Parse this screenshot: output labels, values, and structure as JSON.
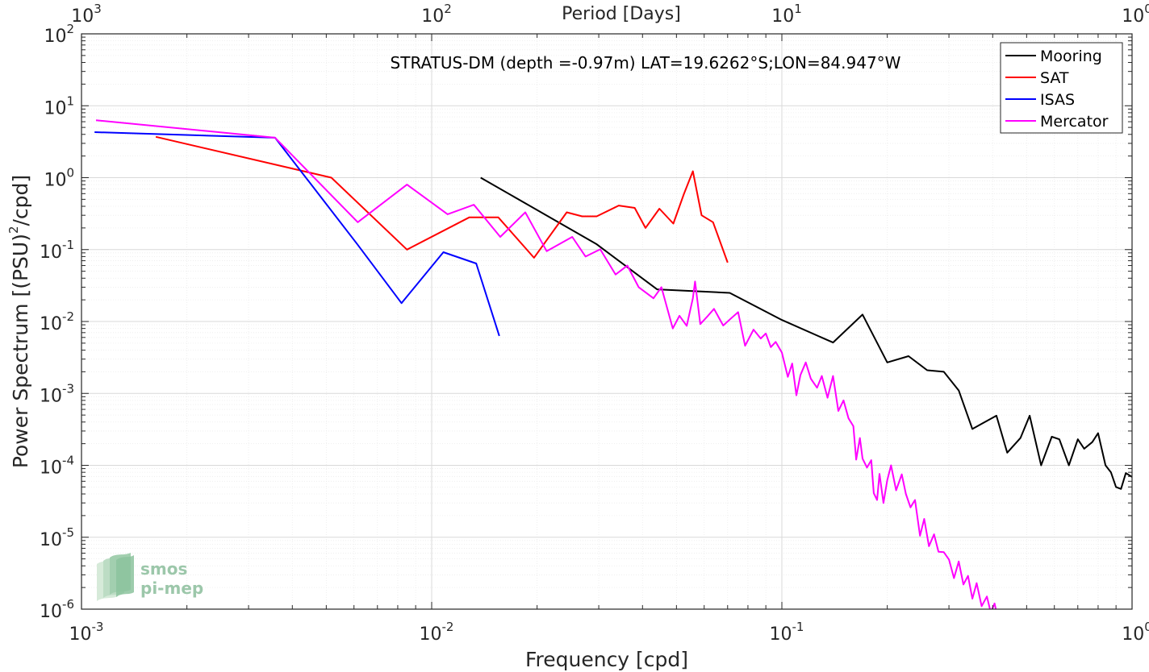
{
  "chart_data": {
    "type": "line",
    "title": "STRATUS-DM (depth =-0.97m) LAT=19.6262°S;LON=84.947°W",
    "xlabel": "Frequency [cpd]",
    "ylabel": "Power Spectrum [(PSU)",
    "ylabel_sup": "2",
    "ylabel_tail": "/cpd]",
    "top_xlabel": "Period [Days]",
    "xscale": "log",
    "yscale": "log",
    "xlim": [
      0.001,
      1
    ],
    "ylim": [
      1e-06,
      100
    ],
    "grid": true,
    "legend_position": "top-right",
    "x_ticks": [
      {
        "base": "10",
        "exp": "-3"
      },
      {
        "base": "10",
        "exp": "-2"
      },
      {
        "base": "10",
        "exp": "-1"
      },
      {
        "base": "10",
        "exp": "0"
      }
    ],
    "y_ticks": [
      {
        "base": "10",
        "exp": "-6"
      },
      {
        "base": "10",
        "exp": "-5"
      },
      {
        "base": "10",
        "exp": "-4"
      },
      {
        "base": "10",
        "exp": "-3"
      },
      {
        "base": "10",
        "exp": "-2"
      },
      {
        "base": "10",
        "exp": "-1"
      },
      {
        "base": "10",
        "exp": "0"
      },
      {
        "base": "10",
        "exp": "1"
      },
      {
        "base": "10",
        "exp": "2"
      }
    ],
    "top_ticks": [
      {
        "base": "10",
        "exp": "3"
      },
      {
        "base": "10",
        "exp": "2"
      },
      {
        "base": "10",
        "exp": "1"
      },
      {
        "base": "10",
        "exp": "0"
      }
    ],
    "series": [
      {
        "name": "Mooring",
        "color": "#000000",
        "points": [
          [
            0.0138,
            1.0
          ],
          [
            0.0295,
            0.12
          ],
          [
            0.044,
            0.028
          ],
          [
            0.071,
            0.025
          ],
          [
            0.1,
            0.0105
          ],
          [
            0.14,
            0.0051
          ],
          [
            0.17,
            0.0125
          ],
          [
            0.2,
            0.0027
          ],
          [
            0.23,
            0.0033
          ],
          [
            0.26,
            0.0021
          ],
          [
            0.29,
            0.002
          ],
          [
            0.32,
            0.0011
          ],
          [
            0.35,
            0.00032
          ],
          [
            0.38,
            0.0004
          ],
          [
            0.41,
            0.00049
          ],
          [
            0.44,
            0.00015
          ],
          [
            0.48,
            0.00024
          ],
          [
            0.51,
            0.00049
          ],
          [
            0.55,
            0.0001
          ],
          [
            0.59,
            0.00025
          ],
          [
            0.62,
            0.00023
          ],
          [
            0.66,
            0.0001
          ],
          [
            0.7,
            0.00023
          ],
          [
            0.73,
            0.00017
          ],
          [
            0.77,
            0.00021
          ],
          [
            0.8,
            0.00028
          ],
          [
            0.84,
            0.0001
          ],
          [
            0.87,
            8e-05
          ],
          [
            0.9,
            5e-05
          ],
          [
            0.93,
            4.7e-05
          ],
          [
            0.96,
            7.8e-05
          ],
          [
            1.0,
            6.9e-05
          ]
        ]
      },
      {
        "name": "SAT",
        "color": "#ff0000",
        "points": [
          [
            0.00163,
            3.7
          ],
          [
            0.00517,
            1.0
          ],
          [
            0.0085,
            0.1
          ],
          [
            0.0128,
            0.28
          ],
          [
            0.0155,
            0.28
          ],
          [
            0.0196,
            0.077
          ],
          [
            0.0243,
            0.33
          ],
          [
            0.0269,
            0.29
          ],
          [
            0.0296,
            0.29
          ],
          [
            0.0342,
            0.41
          ],
          [
            0.038,
            0.38
          ],
          [
            0.0408,
            0.2
          ],
          [
            0.0447,
            0.37
          ],
          [
            0.049,
            0.23
          ],
          [
            0.0525,
            0.59
          ],
          [
            0.0557,
            1.23
          ],
          [
            0.059,
            0.3
          ],
          [
            0.0636,
            0.24
          ],
          [
            0.07,
            0.066
          ]
        ]
      },
      {
        "name": "ISAS",
        "color": "#0000ff",
        "points": [
          [
            0.00109,
            4.3
          ],
          [
            0.00357,
            3.6
          ],
          [
            0.00612,
            0.12
          ],
          [
            0.0082,
            0.018
          ],
          [
            0.0108,
            0.092
          ],
          [
            0.0134,
            0.064
          ],
          [
            0.0156,
            0.0063
          ]
        ]
      },
      {
        "name": "Mercator",
        "color": "#ff00ff",
        "points": [
          [
            0.0011,
            6.3
          ],
          [
            0.00357,
            3.6
          ],
          [
            0.00615,
            0.24
          ],
          [
            0.0085,
            0.8
          ],
          [
            0.0111,
            0.31
          ],
          [
            0.0132,
            0.42
          ],
          [
            0.0157,
            0.15
          ],
          [
            0.0185,
            0.33
          ],
          [
            0.0213,
            0.095
          ],
          [
            0.0252,
            0.15
          ],
          [
            0.0275,
            0.08
          ],
          [
            0.0303,
            0.101
          ],
          [
            0.0335,
            0.045
          ],
          [
            0.0362,
            0.06
          ],
          [
            0.039,
            0.03
          ],
          [
            0.043,
            0.021
          ],
          [
            0.0453,
            0.03
          ],
          [
            0.0488,
            0.008
          ],
          [
            0.051,
            0.012
          ],
          [
            0.0535,
            0.0087
          ],
          [
            0.0557,
            0.021
          ],
          [
            0.0565,
            0.036
          ],
          [
            0.0585,
            0.0092
          ],
          [
            0.0615,
            0.012
          ],
          [
            0.064,
            0.015
          ],
          [
            0.068,
            0.0088
          ],
          [
            0.0715,
            0.011
          ],
          [
            0.075,
            0.0135
          ],
          [
            0.0785,
            0.0046
          ],
          [
            0.083,
            0.0077
          ],
          [
            0.087,
            0.0058
          ],
          [
            0.09,
            0.0068
          ],
          [
            0.093,
            0.0044
          ],
          [
            0.096,
            0.0052
          ],
          [
            0.1,
            0.0037
          ],
          [
            0.104,
            0.0017
          ],
          [
            0.107,
            0.0026
          ],
          [
            0.11,
            0.00094
          ],
          [
            0.113,
            0.0018
          ],
          [
            0.117,
            0.0027
          ],
          [
            0.121,
            0.0016
          ],
          [
            0.126,
            0.0012
          ],
          [
            0.13,
            0.00175
          ],
          [
            0.135,
            0.00087
          ],
          [
            0.14,
            0.00175
          ],
          [
            0.145,
            0.00057
          ],
          [
            0.15,
            0.0008
          ],
          [
            0.155,
            0.00045
          ],
          [
            0.16,
            0.00035
          ],
          [
            0.163,
            0.00012
          ],
          [
            0.167,
            0.00024
          ],
          [
            0.17,
            0.000124
          ],
          [
            0.175,
            9.3e-05
          ],
          [
            0.18,
            0.000118
          ],
          [
            0.183,
            4.1e-05
          ],
          [
            0.187,
            3.3e-05
          ],
          [
            0.19,
            7.6e-05
          ],
          [
            0.195,
            3e-05
          ],
          [
            0.2,
            6.2e-05
          ],
          [
            0.205,
            0.0001
          ],
          [
            0.212,
            4.5e-05
          ],
          [
            0.22,
            7.5e-05
          ],
          [
            0.226,
            4e-05
          ],
          [
            0.233,
            2.6e-05
          ],
          [
            0.24,
            3.3e-05
          ],
          [
            0.248,
            1.05e-05
          ],
          [
            0.255,
            1.8e-05
          ],
          [
            0.263,
            7.5e-06
          ],
          [
            0.272,
            1.1e-05
          ],
          [
            0.28,
            6.3e-06
          ],
          [
            0.29,
            6.2e-06
          ],
          [
            0.3,
            4.9e-06
          ],
          [
            0.31,
            2.7e-06
          ],
          [
            0.32,
            4.6e-06
          ],
          [
            0.33,
            2.2e-06
          ],
          [
            0.34,
            2.9e-06
          ],
          [
            0.35,
            1.4e-06
          ],
          [
            0.36,
            2.3e-06
          ],
          [
            0.372,
            1.1e-06
          ],
          [
            0.385,
            1.5e-06
          ],
          [
            0.395,
            9e-07
          ],
          [
            0.405,
            1.2e-06
          ],
          [
            0.415,
            7e-07
          ]
        ]
      }
    ]
  }
}
